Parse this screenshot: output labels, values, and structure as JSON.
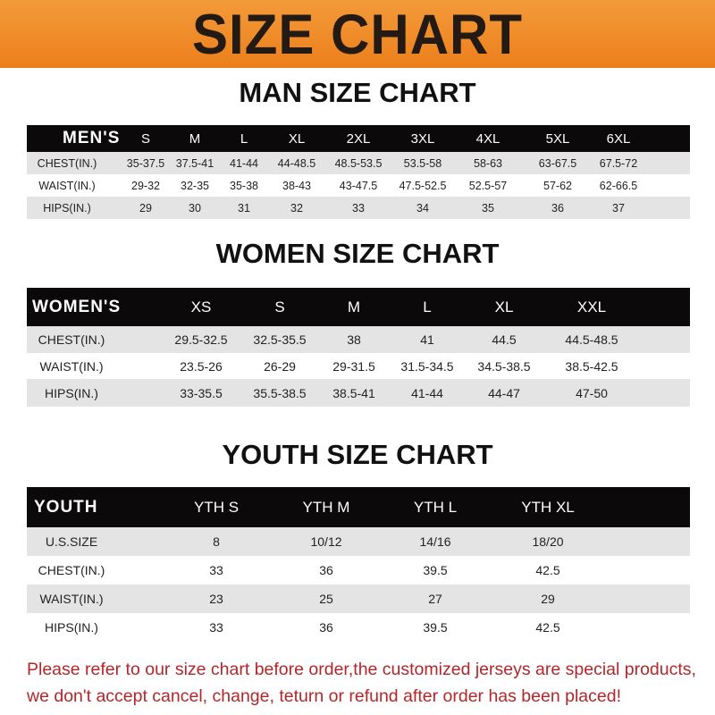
{
  "banner_title": "SIZE CHART",
  "tables": [
    {
      "title": "MAN SIZE CHART",
      "header_label": "MEN'S",
      "sizes": [
        "S",
        "M",
        "L",
        "XL",
        "2XL",
        "3XL",
        "4XL",
        "5XL",
        "6XL"
      ],
      "rows": [
        {
          "label": "CHEST(IN.)",
          "values": [
            "35-37.5",
            "37.5-41",
            "41-44",
            "44-48.5",
            "48.5-53.5",
            "53.5-58",
            "58-63",
            "63-67.5",
            "67.5-72"
          ]
        },
        {
          "label": "WAIST(IN.)",
          "values": [
            "29-32",
            "32-35",
            "35-38",
            "38-43",
            "43-47.5",
            "47.5-52.5",
            "52.5-57",
            "57-62",
            "62-66.5"
          ]
        },
        {
          "label": "HIPS(IN.)",
          "values": [
            "29",
            "30",
            "31",
            "32",
            "33",
            "34",
            "35",
            "36",
            "37"
          ]
        }
      ]
    },
    {
      "title": "WOMEN SIZE CHART",
      "header_label": "WOMEN'S",
      "sizes": [
        "XS",
        "S",
        "M",
        "L",
        "XL",
        "XXL"
      ],
      "rows": [
        {
          "label": "CHEST(IN.)",
          "values": [
            "29.5-32.5",
            "32.5-35.5",
            "38",
            "41",
            "44.5",
            "44.5-48.5"
          ]
        },
        {
          "label": "WAIST(IN.)",
          "values": [
            "23.5-26",
            "26-29",
            "29-31.5",
            "31.5-34.5",
            "34.5-38.5",
            "38.5-42.5"
          ]
        },
        {
          "label": "HIPS(IN.)",
          "values": [
            "33-35.5",
            "35.5-38.5",
            "38.5-41",
            "41-44",
            "44-47",
            "47-50"
          ]
        }
      ]
    },
    {
      "title": "YOUTH SIZE CHART",
      "header_label": "YOUTH",
      "sizes": [
        "YTH S",
        "YTH M",
        "YTH L",
        "YTH XL"
      ],
      "rows": [
        {
          "label": "U.S.SIZE",
          "values": [
            "8",
            "10/12",
            "14/16",
            "18/20"
          ]
        },
        {
          "label": "CHEST(IN.)",
          "values": [
            "33",
            "36",
            "39.5",
            "42.5"
          ]
        },
        {
          "label": "WAIST(IN.)",
          "values": [
            "23",
            "25",
            "27",
            "29"
          ]
        },
        {
          "label": "HIPS(IN.)",
          "values": [
            "33",
            "36",
            "39.5",
            "42.5"
          ]
        }
      ]
    }
  ],
  "footer": {
    "line1": "Please refer to our size chart before order,the customized jerseys are special products,",
    "line2": "we don't accept cancel, change, teturn or refund after order has been placed!"
  },
  "colors": {
    "banner": "#ef8a26",
    "header_row": "#0b0909",
    "stripe": "#e4e4e4",
    "footer_text": "#b3262a"
  }
}
